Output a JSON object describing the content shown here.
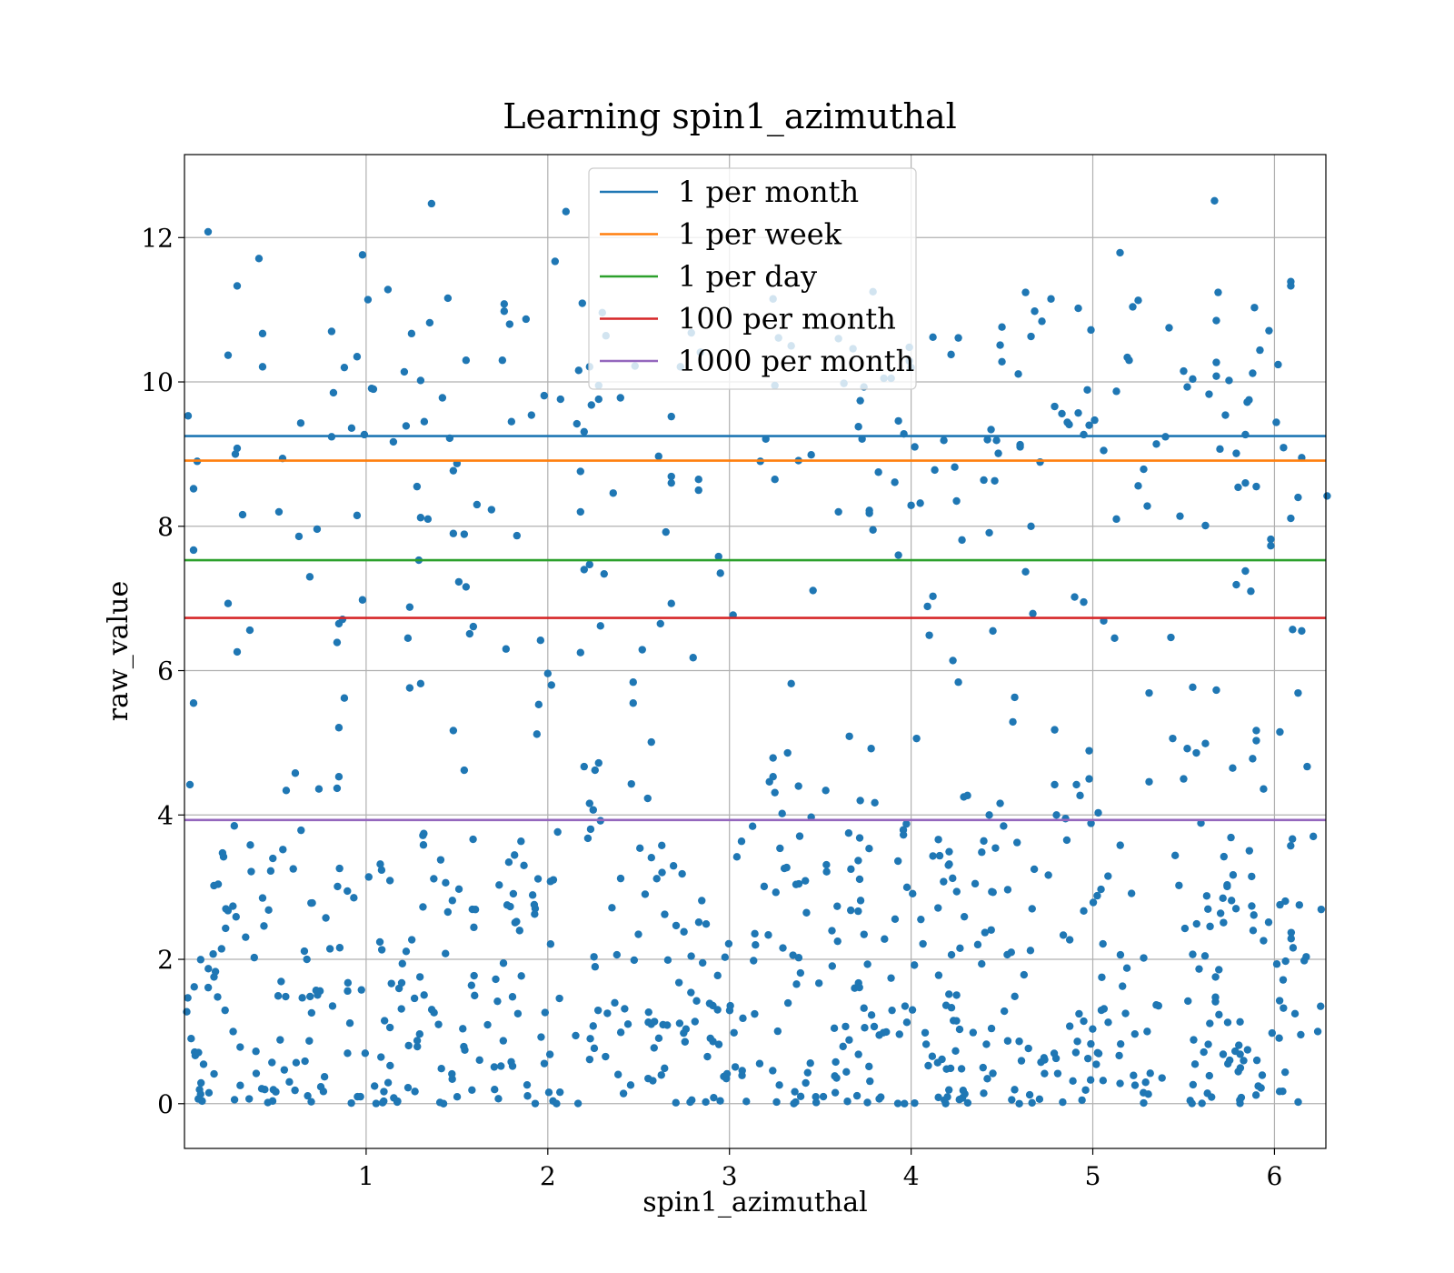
{
  "chart_data": {
    "type": "scatter",
    "title": "Learning spin1_azimuthal",
    "xlabel": "spin1_azimuthal",
    "ylabel": "raw_value",
    "xlim": [
      0,
      6.283
    ],
    "ylim": [
      -0.62,
      13.15
    ],
    "xticks": [
      1,
      2,
      3,
      4,
      5,
      6
    ],
    "yticks": [
      0,
      2,
      4,
      6,
      8,
      10,
      12
    ],
    "grid": true,
    "legend_placement": "upper center",
    "point_color": "#1f77b4",
    "hlines": [
      {
        "name": "1 per month",
        "y": 9.25,
        "color": "#1f77b4"
      },
      {
        "name": "1 per week",
        "y": 8.91,
        "color": "#ff7f0e"
      },
      {
        "name": "1 per day",
        "y": 7.53,
        "color": "#2ca02c"
      },
      {
        "name": "100 per month",
        "y": 6.73,
        "color": "#d62728"
      },
      {
        "name": "1000 per month",
        "y": 3.93,
        "color": "#9467bd"
      }
    ],
    "points": [
      [
        0.02,
        9.53
      ],
      [
        0.13,
        12.08
      ],
      [
        0.05,
        8.52
      ],
      [
        0.07,
        8.9
      ],
      [
        0.29,
        11.33
      ],
      [
        0.43,
        10.67
      ],
      [
        0.43,
        10.21
      ],
      [
        0.24,
        10.37
      ],
      [
        0.28,
        9.0
      ],
      [
        0.29,
        9.08
      ],
      [
        0.32,
        8.16
      ],
      [
        0.05,
        7.67
      ],
      [
        0.24,
        6.93
      ],
      [
        0.29,
        6.26
      ],
      [
        0.36,
        6.56
      ],
      [
        0.05,
        5.55
      ],
      [
        0.03,
        4.42
      ],
      [
        0.52,
        8.2
      ],
      [
        0.54,
        8.94
      ],
      [
        0.63,
        7.86
      ],
      [
        0.64,
        9.43
      ],
      [
        0.69,
        7.3
      ],
      [
        0.73,
        7.96
      ],
      [
        0.81,
        10.7
      ],
      [
        0.81,
        9.24
      ],
      [
        0.82,
        9.85
      ],
      [
        0.88,
        10.2
      ],
      [
        0.92,
        9.36
      ],
      [
        0.95,
        8.15
      ],
      [
        0.95,
        10.35
      ],
      [
        0.99,
        9.27
      ],
      [
        0.98,
        11.76
      ],
      [
        1.03,
        9.91
      ],
      [
        1.04,
        9.9
      ],
      [
        1.12,
        11.28
      ],
      [
        1.15,
        9.17
      ],
      [
        1.22,
        9.39
      ],
      [
        1.25,
        10.67
      ],
      [
        1.28,
        8.55
      ],
      [
        1.3,
        8.12
      ],
      [
        1.34,
        8.1
      ],
      [
        1.35,
        10.82
      ],
      [
        1.36,
        12.47
      ],
      [
        1.3,
        10.02
      ],
      [
        1.32,
        9.45
      ],
      [
        1.42,
        9.78
      ],
      [
        1.45,
        11.16
      ],
      [
        1.46,
        9.22
      ],
      [
        1.48,
        8.77
      ],
      [
        1.5,
        8.87
      ],
      [
        1.55,
        10.3
      ],
      [
        1.48,
        7.9
      ],
      [
        1.54,
        7.89
      ],
      [
        1.61,
        8.3
      ],
      [
        1.69,
        8.23
      ],
      [
        1.75,
        10.3
      ],
      [
        1.76,
        10.98
      ],
      [
        1.76,
        11.08
      ],
      [
        1.79,
        10.8
      ],
      [
        1.8,
        9.45
      ],
      [
        1.83,
        7.87
      ],
      [
        1.88,
        10.87
      ],
      [
        1.91,
        9.54
      ],
      [
        1.98,
        9.81
      ],
      [
        2.04,
        11.67
      ],
      [
        2.07,
        9.76
      ],
      [
        2.1,
        12.36
      ],
      [
        2.17,
        10.16
      ],
      [
        2.19,
        11.09
      ],
      [
        2.2,
        9.31
      ],
      [
        2.23,
        10.21
      ],
      [
        2.24,
        9.68
      ],
      [
        2.28,
        9.76
      ],
      [
        2.3,
        10.96
      ],
      [
        2.28,
        9.95
      ],
      [
        2.32,
        10.64
      ],
      [
        2.36,
        8.46
      ],
      [
        2.4,
        9.78
      ],
      [
        2.2,
        7.4
      ],
      [
        2.23,
        7.47
      ],
      [
        2.18,
        8.76
      ],
      [
        2.18,
        8.2
      ],
      [
        2.31,
        7.34
      ],
      [
        0.98,
        6.98
      ],
      [
        0.85,
        6.65
      ],
      [
        0.87,
        6.71
      ],
      [
        0.84,
        6.39
      ],
      [
        0.88,
        5.62
      ],
      [
        0.85,
        5.21
      ],
      [
        0.85,
        4.53
      ],
      [
        0.84,
        4.37
      ],
      [
        0.56,
        4.34
      ],
      [
        0.61,
        4.58
      ],
      [
        0.74,
        4.36
      ],
      [
        1.23,
        6.45
      ],
      [
        1.24,
        6.88
      ],
      [
        1.24,
        5.76
      ],
      [
        1.3,
        5.82
      ],
      [
        1.29,
        7.53
      ],
      [
        1.51,
        7.23
      ],
      [
        1.55,
        7.16
      ],
      [
        1.57,
        6.51
      ],
      [
        1.59,
        6.61
      ],
      [
        1.48,
        5.17
      ],
      [
        1.54,
        4.62
      ],
      [
        1.77,
        6.3
      ],
      [
        1.95,
        5.53
      ],
      [
        1.94,
        5.12
      ],
      [
        1.96,
        6.42
      ],
      [
        2.0,
        5.96
      ],
      [
        2.02,
        5.8
      ],
      [
        2.18,
        6.25
      ],
      [
        2.29,
        6.62
      ],
      [
        2.2,
        4.67
      ],
      [
        2.26,
        4.62
      ],
      [
        2.28,
        4.72
      ],
      [
        2.23,
        4.16
      ],
      [
        2.25,
        4.07
      ],
      [
        2.29,
        3.92
      ],
      [
        2.46,
        4.43
      ],
      [
        2.47,
        5.84
      ],
      [
        2.47,
        5.55
      ],
      [
        2.52,
        6.29
      ],
      [
        2.55,
        4.23
      ],
      [
        2.57,
        5.01
      ],
      [
        2.61,
        8.97
      ],
      [
        2.65,
        7.92
      ],
      [
        2.68,
        8.6
      ],
      [
        2.68,
        8.69
      ],
      [
        2.68,
        6.93
      ],
      [
        2.68,
        9.52
      ],
      [
        2.62,
        6.65
      ],
      [
        2.73,
        10.21
      ],
      [
        2.79,
        10.68
      ],
      [
        2.84,
        10.41
      ],
      [
        2.83,
        8.65
      ],
      [
        2.83,
        8.5
      ],
      [
        2.94,
        7.58
      ],
      [
        2.95,
        7.35
      ],
      [
        2.8,
        6.18
      ],
      [
        3.02,
        6.77
      ],
      [
        3.2,
        9.21
      ],
      [
        3.17,
        8.9
      ],
      [
        3.25,
        8.65
      ],
      [
        3.24,
        11.15
      ],
      [
        3.25,
        9.95
      ],
      [
        3.27,
        10.61
      ],
      [
        3.34,
        10.5
      ],
      [
        3.38,
        8.91
      ],
      [
        3.45,
        8.99
      ],
      [
        3.46,
        7.11
      ],
      [
        3.34,
        5.82
      ],
      [
        3.32,
        4.86
      ],
      [
        3.24,
        4.79
      ],
      [
        3.22,
        4.46
      ],
      [
        3.24,
        4.53
      ],
      [
        3.25,
        4.31
      ],
      [
        3.29,
        4.02
      ],
      [
        3.38,
        4.4
      ],
      [
        3.45,
        3.97
      ],
      [
        3.6,
        10.6
      ],
      [
        3.63,
        9.98
      ],
      [
        3.68,
        10.46
      ],
      [
        3.71,
        9.38
      ],
      [
        3.72,
        9.74
      ],
      [
        3.73,
        9.21
      ],
      [
        3.79,
        11.25
      ],
      [
        3.77,
        8.22
      ],
      [
        3.79,
        7.95
      ],
      [
        3.82,
        8.75
      ],
      [
        3.85,
        10.05
      ],
      [
        3.91,
        8.61
      ],
      [
        3.93,
        9.46
      ],
      [
        3.96,
        9.28
      ],
      [
        3.99,
        10.48
      ],
      [
        4.0,
        10.2
      ],
      [
        4.02,
        9.1
      ],
      [
        4.05,
        8.32
      ],
      [
        4.0,
        8.29
      ],
      [
        3.93,
        7.6
      ],
      [
        4.12,
        10.62
      ],
      [
        4.18,
        9.19
      ],
      [
        4.22,
        10.38
      ],
      [
        4.26,
        10.61
      ],
      [
        4.24,
        8.82
      ],
      [
        4.25,
        8.35
      ],
      [
        4.28,
        7.81
      ],
      [
        4.13,
        8.78
      ],
      [
        4.09,
        6.89
      ],
      [
        4.12,
        7.03
      ],
      [
        4.1,
        6.49
      ],
      [
        4.23,
        6.14
      ],
      [
        4.26,
        5.84
      ],
      [
        4.03,
        5.06
      ],
      [
        3.66,
        5.09
      ],
      [
        3.78,
        4.92
      ],
      [
        3.72,
        4.2
      ],
      [
        3.8,
        4.17
      ],
      [
        4.29,
        4.25
      ],
      [
        4.31,
        4.27
      ],
      [
        4.43,
        4.0
      ],
      [
        4.49,
        4.16
      ],
      [
        4.45,
        6.55
      ],
      [
        4.4,
        8.64
      ],
      [
        4.43,
        7.91
      ],
      [
        4.44,
        9.34
      ],
      [
        4.42,
        9.2
      ],
      [
        4.47,
        9.19
      ],
      [
        4.48,
        9.01
      ],
      [
        4.46,
        8.63
      ],
      [
        4.49,
        10.51
      ],
      [
        4.5,
        10.76
      ],
      [
        4.5,
        10.28
      ],
      [
        4.59,
        10.11
      ],
      [
        4.6,
        9.13
      ],
      [
        4.6,
        9.1
      ],
      [
        4.66,
        10.63
      ],
      [
        4.68,
        10.98
      ],
      [
        4.72,
        10.84
      ],
      [
        4.77,
        11.15
      ],
      [
        4.79,
        9.66
      ],
      [
        4.83,
        9.56
      ],
      [
        4.87,
        9.41
      ],
      [
        4.86,
        9.44
      ],
      [
        4.92,
        11.02
      ],
      [
        4.92,
        9.57
      ],
      [
        4.95,
        9.27
      ],
      [
        4.97,
        9.89
      ],
      [
        4.98,
        9.4
      ],
      [
        4.99,
        10.72
      ],
      [
        5.01,
        9.47
      ],
      [
        4.95,
        6.95
      ],
      [
        4.9,
        7.02
      ],
      [
        5.06,
        9.05
      ],
      [
        5.06,
        6.69
      ],
      [
        5.12,
        6.45
      ],
      [
        5.13,
        8.1
      ],
      [
        5.15,
        11.79
      ],
      [
        5.13,
        9.87
      ],
      [
        5.19,
        10.34
      ],
      [
        5.2,
        10.3
      ],
      [
        5.22,
        11.04
      ],
      [
        5.25,
        11.13
      ],
      [
        5.25,
        8.56
      ],
      [
        5.28,
        8.79
      ],
      [
        5.3,
        8.28
      ],
      [
        5.35,
        9.14
      ],
      [
        5.4,
        9.24
      ],
      [
        5.42,
        10.75
      ],
      [
        5.43,
        6.46
      ],
      [
        5.48,
        8.14
      ],
      [
        5.5,
        10.15
      ],
      [
        5.52,
        9.93
      ],
      [
        5.55,
        10.04
      ],
      [
        5.62,
        8.01
      ],
      [
        5.64,
        9.83
      ],
      [
        5.68,
        10.27
      ],
      [
        5.68,
        10.08
      ],
      [
        5.67,
        12.51
      ],
      [
        5.69,
        11.24
      ],
      [
        5.68,
        10.85
      ],
      [
        5.7,
        9.07
      ],
      [
        5.73,
        9.54
      ],
      [
        5.75,
        10.02
      ],
      [
        5.79,
        9.01
      ],
      [
        5.8,
        8.54
      ],
      [
        5.84,
        8.6
      ],
      [
        5.84,
        9.27
      ],
      [
        5.86,
        9.75
      ],
      [
        5.85,
        9.72
      ],
      [
        5.84,
        7.38
      ],
      [
        5.87,
        7.1
      ],
      [
        5.79,
        7.19
      ],
      [
        5.89,
        11.03
      ],
      [
        5.88,
        10.12
      ],
      [
        5.9,
        8.55
      ],
      [
        5.92,
        10.44
      ],
      [
        5.97,
        10.71
      ],
      [
        5.98,
        7.82
      ],
      [
        5.98,
        7.73
      ],
      [
        6.01,
        9.44
      ],
      [
        6.02,
        10.24
      ],
      [
        6.05,
        9.09
      ],
      [
        6.09,
        11.39
      ],
      [
        6.09,
        11.33
      ],
      [
        6.09,
        8.11
      ],
      [
        6.13,
        8.4
      ],
      [
        6.15,
        8.95
      ],
      [
        6.1,
        6.57
      ],
      [
        6.15,
        6.55
      ],
      [
        6.13,
        5.69
      ],
      [
        6.18,
        4.67
      ],
      [
        6.29,
        8.42
      ],
      [
        6.03,
        5.15
      ],
      [
        5.9,
        5.03
      ],
      [
        5.9,
        5.17
      ],
      [
        5.88,
        4.78
      ],
      [
        5.94,
        4.36
      ],
      [
        5.77,
        4.65
      ],
      [
        5.52,
        4.92
      ],
      [
        5.57,
        4.86
      ],
      [
        5.55,
        5.77
      ],
      [
        5.68,
        5.73
      ],
      [
        5.44,
        5.06
      ],
      [
        5.31,
        4.46
      ],
      [
        5.31,
        5.69
      ],
      [
        5.5,
        4.5
      ],
      [
        4.98,
        4.89
      ],
      [
        4.98,
        4.5
      ],
      [
        4.91,
        4.42
      ],
      [
        4.93,
        4.27
      ],
      [
        5.03,
        4.03
      ],
      [
        4.79,
        4.42
      ],
      [
        4.79,
        5.18
      ],
      [
        4.85,
        3.95
      ],
      [
        4.8,
        4.0
      ],
      [
        4.56,
        5.29
      ],
      [
        4.57,
        5.63
      ],
      [
        4.63,
        7.37
      ],
      [
        4.67,
        6.79
      ],
      [
        4.66,
        8.0
      ],
      [
        4.71,
        8.89
      ],
      [
        4.63,
        11.24
      ],
      [
        4.15,
        3.66
      ],
      [
        3.53,
        4.34
      ],
      [
        3.6,
        8.2
      ],
      [
        3.77,
        8.18
      ],
      [
        3.74,
        9.93
      ],
      [
        3.89,
        10.05
      ],
      [
        3.99,
        10.29
      ],
      [
        2.48,
        10.22
      ],
      [
        2.16,
        9.42
      ],
      [
        1.21,
        10.14
      ],
      [
        1.01,
        11.14
      ],
      [
        0.41,
        11.71
      ],
      [
        5.62,
        4.99
      ]
    ],
    "dense_region": {
      "x_range": [
        0,
        6.283
      ],
      "y_range": [
        0,
        3.9
      ],
      "count": 640
    }
  }
}
